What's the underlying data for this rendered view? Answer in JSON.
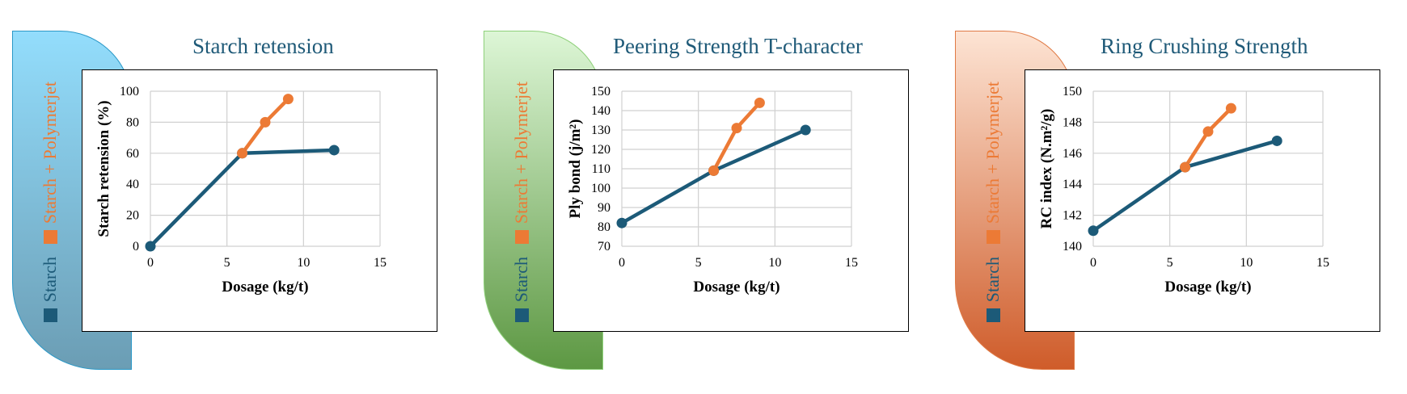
{
  "colors": {
    "starch": "#1c5a78",
    "polymerjet": "#ec7a35",
    "title": "#1f5a78",
    "grid": "#d0d0d0"
  },
  "chart_data": [
    {
      "type": "line",
      "title": "Starch retension",
      "xlabel": "Dosage (kg/t)",
      "ylabel": "Starch retension (%)",
      "xlim": [
        0,
        15
      ],
      "ylim": [
        0,
        100
      ],
      "xticks": [
        0,
        5,
        10,
        15
      ],
      "yticks": [
        0,
        20,
        40,
        60,
        80,
        100
      ],
      "grid": true,
      "legend_placement": "left-vertical",
      "series": [
        {
          "name": "Starch",
          "x": [
            0,
            6,
            12
          ],
          "y": [
            0,
            60,
            62
          ]
        },
        {
          "name": "Starch + Polymerjet",
          "x": [
            6,
            7.5,
            9
          ],
          "y": [
            60,
            80,
            95
          ]
        }
      ]
    },
    {
      "type": "line",
      "title": "Peering Strength T-character",
      "xlabel": "Dosage (kg/t)",
      "ylabel": "Ply bond (j/m²)",
      "xlim": [
        0,
        15
      ],
      "ylim": [
        70,
        150
      ],
      "xticks": [
        0,
        5,
        10,
        15
      ],
      "yticks": [
        70,
        80,
        90,
        100,
        110,
        120,
        130,
        140,
        150
      ],
      "grid": true,
      "legend_placement": "left-vertical",
      "series": [
        {
          "name": "Starch",
          "x": [
            0,
            6,
            12
          ],
          "y": [
            82,
            109,
            130
          ]
        },
        {
          "name": "Starch + Polymerjet",
          "x": [
            6,
            7.5,
            9
          ],
          "y": [
            109,
            131,
            144
          ]
        }
      ]
    },
    {
      "type": "line",
      "title": "Ring Crushing Strength",
      "xlabel": "Dosage (kg/t)",
      "ylabel": "RC index (N.m²/g)",
      "xlim": [
        0,
        15
      ],
      "ylim": [
        140,
        150
      ],
      "xticks": [
        0,
        5,
        10,
        15
      ],
      "yticks": [
        140,
        142,
        144,
        146,
        148,
        150
      ],
      "grid": true,
      "legend_placement": "left-vertical",
      "series": [
        {
          "name": "Starch",
          "x": [
            0,
            6,
            12
          ],
          "y": [
            141,
            145.1,
            146.8
          ]
        },
        {
          "name": "Starch + Polymerjet",
          "x": [
            6,
            7.5,
            9
          ],
          "y": [
            145.1,
            147.4,
            148.9
          ]
        }
      ]
    }
  ]
}
